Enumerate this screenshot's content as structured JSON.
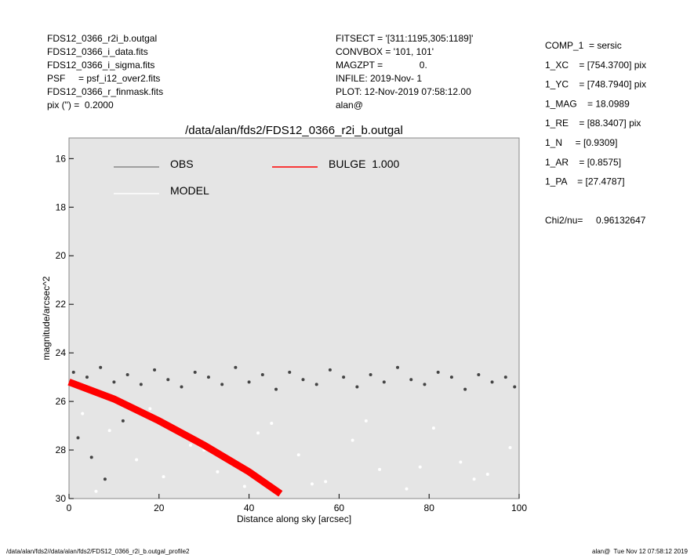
{
  "header": {
    "left": [
      "FDS12_0366_r2i_b.outgal",
      "FDS12_0366_i_data.fits",
      "FDS12_0366_i_sigma.fits",
      "PSF     = psf_i12_over2.fits",
      "FDS12_0366_r_finmask.fits",
      "pix (\") =  0.2000"
    ],
    "middle": [
      "FITSECT = '[311:1195,305:1189]'",
      "CONVBOX = '101, 101'",
      "MAGZPT =              0.",
      "INFILE: 2019-Nov- 1",
      "PLOT: 12-Nov-2019 07:58:12.00",
      "alan@"
    ],
    "right": [
      "COMP_1  = sersic",
      "1_XC    = [754.3700] pix",
      "1_YC    = [748.7940] pix",
      "1_MAG    = 18.0989",
      "1_RE    = [88.3407] pix",
      "1_N     = [0.9309]",
      "1_AR    = [0.8575]",
      "1_PA    = [27.4787]"
    ],
    "chi2": "Chi2/nu=     0.96132647"
  },
  "footer": {
    "left": "/data/alan/fds2//data/alan/fds2/FDS12_0366_r2i_b.outgal_profile2",
    "right": "alan@  Tue Nov 12 07:58:12 2019"
  },
  "chart_data": {
    "type": "scatter",
    "title": "/data/alan/fds2/FDS12_0366_r2i_b.outgal",
    "xlabel": "Distance along sky [arcsec]",
    "ylabel": "magnitude/arcsec^2",
    "xlim": [
      0,
      100
    ],
    "ylim": [
      30,
      15.15
    ],
    "xticks": [
      0,
      20,
      40,
      60,
      80,
      100
    ],
    "yticks": [
      16,
      18,
      20,
      22,
      24,
      26,
      28,
      30
    ],
    "series": [
      {
        "name": "OBS",
        "color": "#444444",
        "legend_color": "#888888",
        "kind": "points",
        "x": [
          1,
          4,
          7,
          10,
          13,
          16,
          19,
          22,
          25,
          28,
          31,
          34,
          37,
          40,
          43,
          46,
          49,
          52,
          55,
          58,
          61,
          64,
          67,
          70,
          73,
          76,
          79,
          82,
          85,
          88,
          91,
          94,
          97,
          99,
          2,
          5,
          8,
          12
        ],
        "values": [
          24.8,
          25.0,
          24.6,
          25.2,
          24.9,
          25.3,
          24.7,
          25.1,
          25.4,
          24.8,
          25.0,
          25.3,
          24.6,
          25.2,
          24.9,
          25.5,
          24.8,
          25.1,
          25.3,
          24.7,
          25.0,
          25.4,
          24.9,
          25.2,
          24.6,
          25.1,
          25.3,
          24.8,
          25.0,
          25.5,
          24.9,
          25.2,
          25.0,
          25.4,
          27.5,
          28.3,
          29.2,
          26.8
        ]
      },
      {
        "name": "MODEL",
        "color": "#ffffff",
        "legend_color": "#ffffff",
        "kind": "points",
        "x": [
          3,
          9,
          15,
          21,
          27,
          33,
          39,
          45,
          51,
          57,
          63,
          69,
          75,
          81,
          87,
          93,
          98,
          6,
          18,
          30,
          42,
          54,
          66,
          78,
          90
        ],
        "values": [
          26.5,
          27.2,
          28.4,
          29.1,
          27.8,
          28.9,
          29.5,
          26.9,
          28.2,
          29.3,
          27.6,
          28.8,
          29.6,
          27.1,
          28.5,
          29.0,
          27.9,
          29.7,
          26.3,
          28.0,
          27.3,
          29.4,
          26.8,
          28.7,
          29.2
        ]
      },
      {
        "name": "BULGE  1.000",
        "color": "#ff0000",
        "legend_color": "#ff0000",
        "kind": "line",
        "x": [
          0,
          10,
          20,
          30,
          40,
          47
        ],
        "values": [
          25.2,
          25.9,
          26.8,
          27.8,
          28.9,
          29.8
        ]
      }
    ]
  }
}
